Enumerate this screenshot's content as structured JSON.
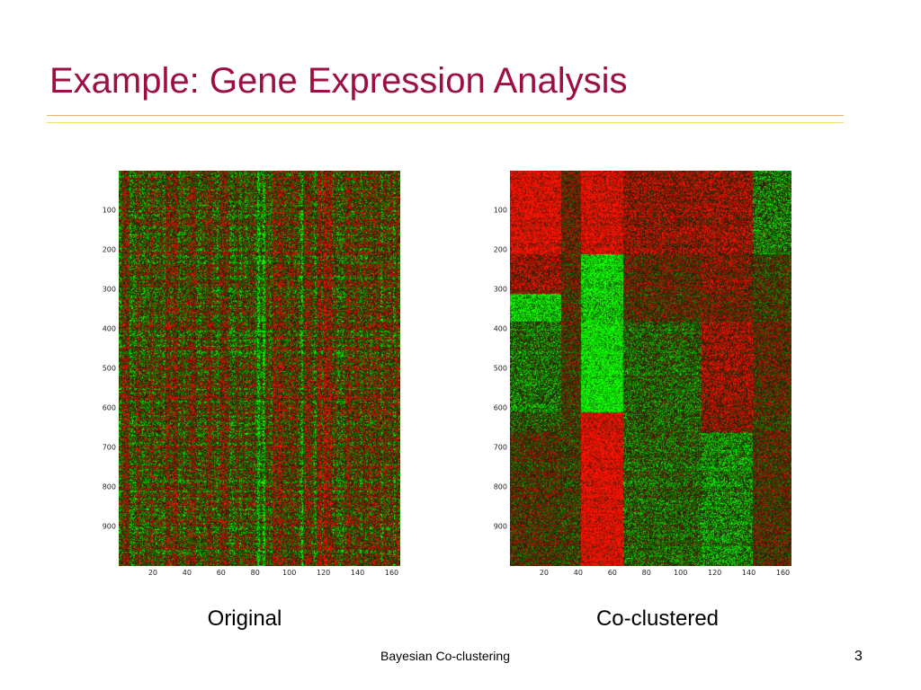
{
  "slide": {
    "title": "Example: Gene Expression Analysis",
    "footer": "Bayesian Co-clustering",
    "page_number": "3"
  },
  "colors": {
    "title": "#9c0f45",
    "rule_top": "#e7b56f",
    "rule_bottom": "#efe06e",
    "heat_high": "#ff1a10",
    "heat_low": "#16ff16",
    "heat_mid": "#1a1a04"
  },
  "heatmaps": [
    {
      "caption": "Original",
      "rows": 1000,
      "cols": 165,
      "y_ticks": [
        "100",
        "200",
        "300",
        "400",
        "500",
        "600",
        "700",
        "800",
        "900"
      ],
      "x_ticks": [
        "20",
        "40",
        "60",
        "80",
        "100",
        "120",
        "140",
        "160"
      ],
      "layout": "unclustered"
    },
    {
      "caption": "Co-clustered",
      "rows": 1000,
      "cols": 165,
      "y_ticks": [
        "100",
        "200",
        "300",
        "400",
        "500",
        "600",
        "700",
        "800",
        "900"
      ],
      "x_ticks": [
        "20",
        "40",
        "60",
        "80",
        "100",
        "120",
        "140",
        "160"
      ],
      "layout": "block"
    }
  ]
}
